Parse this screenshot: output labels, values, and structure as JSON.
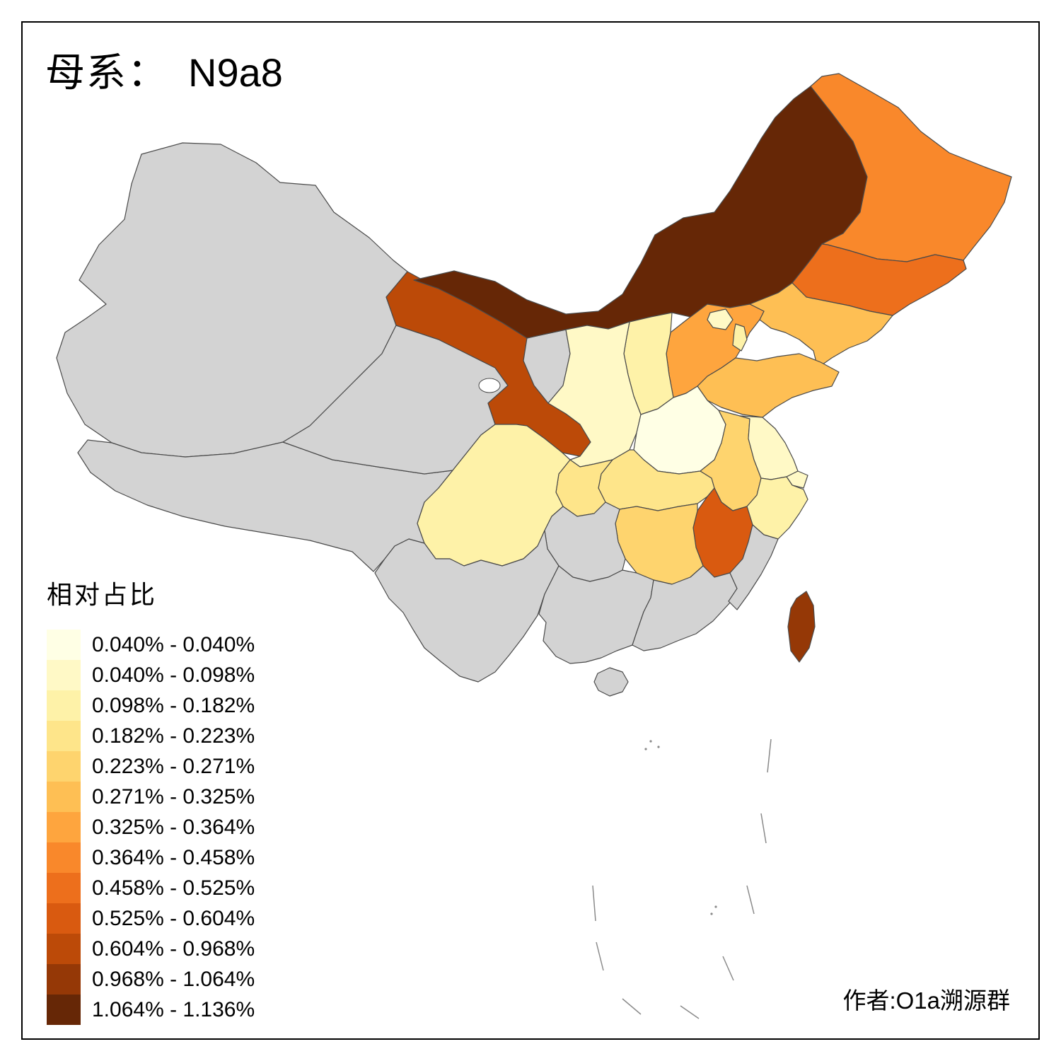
{
  "title": {
    "prefix": "母系：",
    "haplogroup": "N9a8"
  },
  "legend": {
    "title": "相对占比",
    "no_data_color": "#d3d3d3",
    "entries": [
      {
        "label": "0.040% - 0.040%",
        "color": "#FFFFE5"
      },
      {
        "label": "0.040% - 0.098%",
        "color": "#FFF9C6"
      },
      {
        "label": "0.098% - 0.182%",
        "color": "#FEF2A8"
      },
      {
        "label": "0.182% - 0.223%",
        "color": "#FEE58A"
      },
      {
        "label": "0.223% - 0.271%",
        "color": "#FED46E"
      },
      {
        "label": "0.271% - 0.325%",
        "color": "#FEBF54"
      },
      {
        "label": "0.325% - 0.364%",
        "color": "#FEA53E"
      },
      {
        "label": "0.364% - 0.458%",
        "color": "#F9882B"
      },
      {
        "label": "0.458% - 0.525%",
        "color": "#ED6F1C"
      },
      {
        "label": "0.525% - 0.604%",
        "color": "#D95A10"
      },
      {
        "label": "0.604% - 0.968%",
        "color": "#BC4A08"
      },
      {
        "label": "0.968% - 1.064%",
        "color": "#953806"
      },
      {
        "label": "1.064% - 1.136%",
        "color": "#662706"
      }
    ]
  },
  "author": "作者:O1a溯源群",
  "map": {
    "border_color": "#4a4a4a",
    "sea_color": "#ffffff",
    "regions": [
      {
        "id": "xinjiang",
        "bucket": null
      },
      {
        "id": "tibet",
        "bucket": null
      },
      {
        "id": "qinghai",
        "bucket": null
      },
      {
        "id": "gansu",
        "bucket": 10
      },
      {
        "id": "ningxia",
        "bucket": null
      },
      {
        "id": "inner_mongolia",
        "bucket": 12
      },
      {
        "id": "heilongjiang",
        "bucket": 7
      },
      {
        "id": "jilin",
        "bucket": 8
      },
      {
        "id": "liaoning",
        "bucket": 5
      },
      {
        "id": "hebei",
        "bucket": 6
      },
      {
        "id": "beijing",
        "bucket": 1
      },
      {
        "id": "tianjin",
        "bucket": 2
      },
      {
        "id": "shandong",
        "bucket": 5
      },
      {
        "id": "shanxi",
        "bucket": 2
      },
      {
        "id": "shaanxi",
        "bucket": 1
      },
      {
        "id": "henan",
        "bucket": 0
      },
      {
        "id": "hubei",
        "bucket": 3
      },
      {
        "id": "anhui",
        "bucket": 4
      },
      {
        "id": "jiangsu",
        "bucket": 1
      },
      {
        "id": "shanghai",
        "bucket": 1
      },
      {
        "id": "zhejiang",
        "bucket": 2
      },
      {
        "id": "jiangxi",
        "bucket": 9
      },
      {
        "id": "hunan",
        "bucket": 4
      },
      {
        "id": "chongqing",
        "bucket": 3
      },
      {
        "id": "sichuan",
        "bucket": 2
      },
      {
        "id": "guizhou",
        "bucket": null
      },
      {
        "id": "yunnan",
        "bucket": null
      },
      {
        "id": "guangxi",
        "bucket": null
      },
      {
        "id": "guangdong",
        "bucket": null
      },
      {
        "id": "fujian",
        "bucket": null
      },
      {
        "id": "taiwan",
        "bucket": 11
      },
      {
        "id": "hainan",
        "bucket": null
      }
    ]
  }
}
